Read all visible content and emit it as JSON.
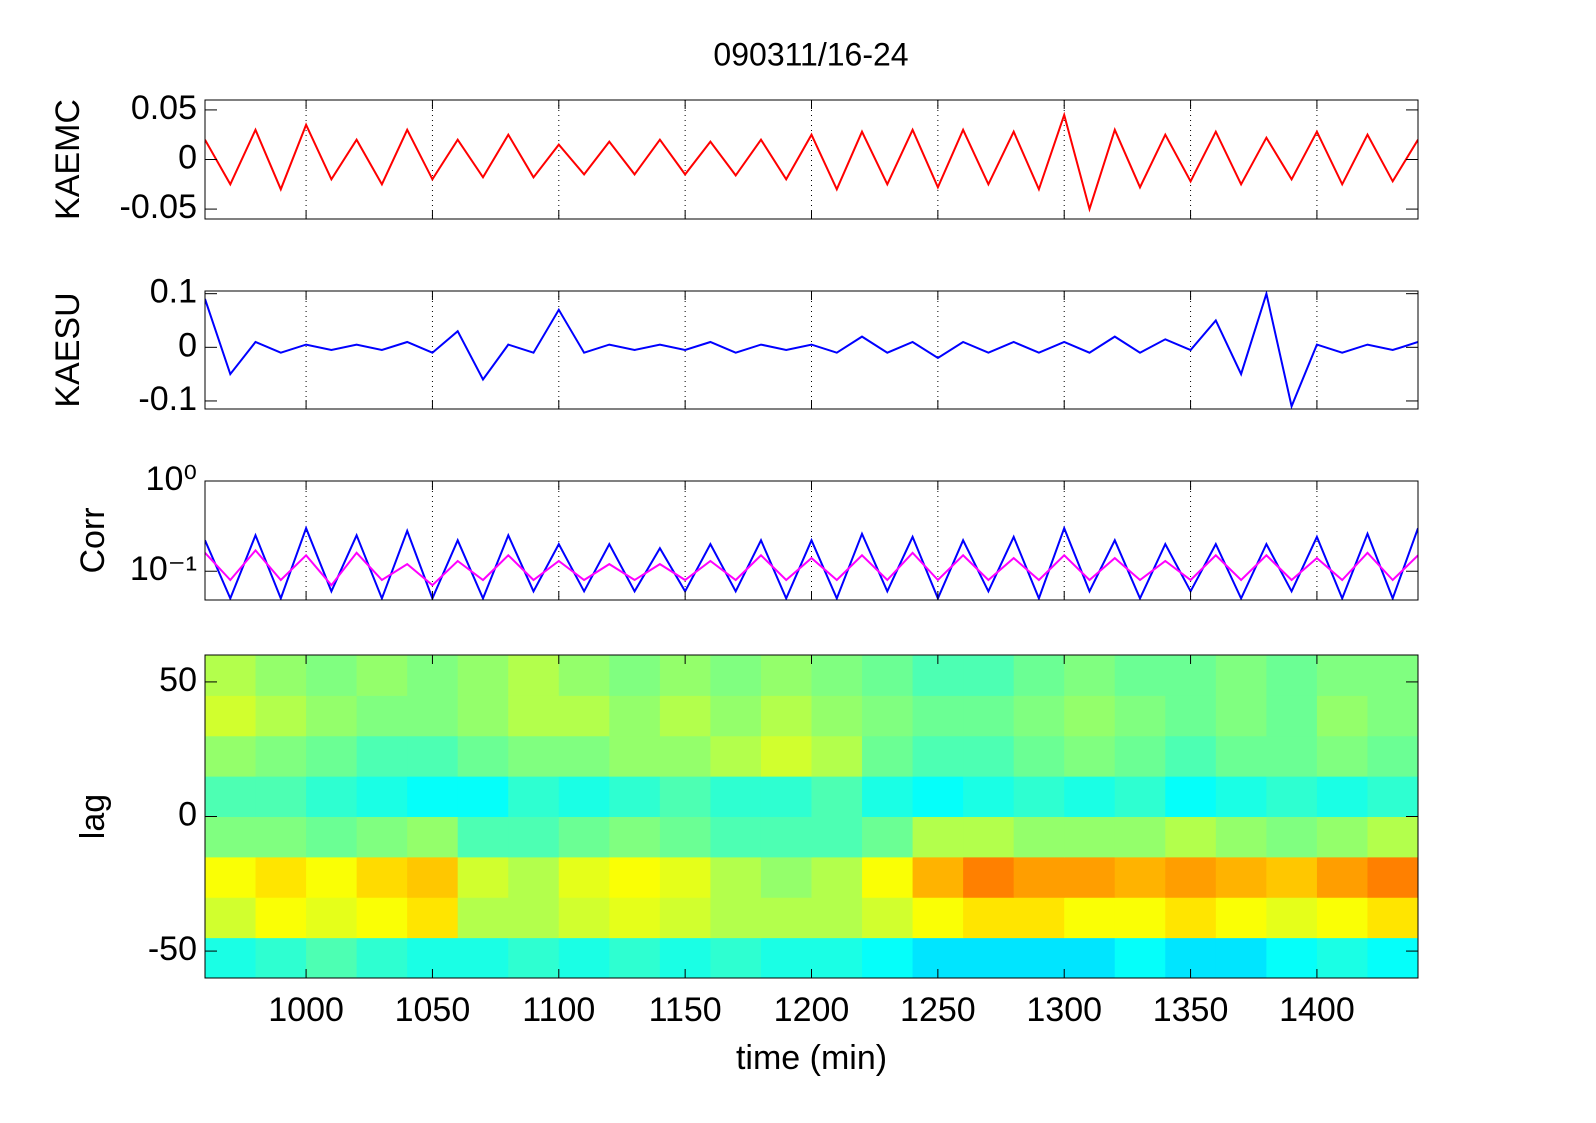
{
  "chart_data": [
    {
      "type": "line",
      "title": "090311/16-24",
      "ylabel": "KAEMC",
      "x": [
        960,
        970,
        980,
        990,
        1000,
        1010,
        1020,
        1030,
        1040,
        1050,
        1060,
        1070,
        1080,
        1090,
        1100,
        1110,
        1120,
        1130,
        1140,
        1150,
        1160,
        1170,
        1180,
        1190,
        1200,
        1210,
        1220,
        1230,
        1240,
        1250,
        1260,
        1270,
        1280,
        1290,
        1300,
        1310,
        1320,
        1330,
        1340,
        1350,
        1360,
        1370,
        1380,
        1390,
        1400,
        1410,
        1420,
        1430,
        1440
      ],
      "series": [
        {
          "color": "#ff0000",
          "values": [
            0.02,
            -0.025,
            0.03,
            -0.03,
            0.035,
            -0.02,
            0.02,
            -0.025,
            0.03,
            -0.02,
            0.02,
            -0.018,
            0.025,
            -0.018,
            0.015,
            -0.015,
            0.018,
            -0.015,
            0.02,
            -0.015,
            0.018,
            -0.016,
            0.02,
            -0.02,
            0.025,
            -0.03,
            0.028,
            -0.025,
            0.03,
            -0.028,
            0.03,
            -0.025,
            0.028,
            -0.03,
            0.045,
            -0.05,
            0.03,
            -0.028,
            0.025,
            -0.022,
            0.028,
            -0.025,
            0.022,
            -0.02,
            0.028,
            -0.025,
            0.025,
            -0.022,
            0.02
          ]
        }
      ],
      "xlim": [
        960,
        1440
      ],
      "xticks": [
        1000,
        1050,
        1100,
        1150,
        1200,
        1250,
        1300,
        1350,
        1400
      ],
      "ylim": [
        -0.06,
        0.06
      ],
      "yticks": [
        -0.05,
        0,
        0.05
      ],
      "grid": "x"
    },
    {
      "type": "line",
      "ylabel": "KAESU",
      "x": [
        960,
        970,
        980,
        990,
        1000,
        1010,
        1020,
        1030,
        1040,
        1050,
        1060,
        1070,
        1080,
        1090,
        1100,
        1110,
        1120,
        1130,
        1140,
        1150,
        1160,
        1170,
        1180,
        1190,
        1200,
        1210,
        1220,
        1230,
        1240,
        1250,
        1260,
        1270,
        1280,
        1290,
        1300,
        1310,
        1320,
        1330,
        1340,
        1350,
        1360,
        1370,
        1380,
        1390,
        1400,
        1410,
        1420,
        1430,
        1440
      ],
      "series": [
        {
          "color": "#0000ff",
          "values": [
            0.09,
            -0.05,
            0.01,
            -0.01,
            0.005,
            -0.005,
            0.005,
            -0.005,
            0.01,
            -0.01,
            0.03,
            -0.06,
            0.005,
            -0.01,
            0.07,
            -0.01,
            0.005,
            -0.005,
            0.005,
            -0.005,
            0.01,
            -0.01,
            0.005,
            -0.005,
            0.005,
            -0.01,
            0.02,
            -0.01,
            0.01,
            -0.02,
            0.01,
            -0.01,
            0.01,
            -0.01,
            0.01,
            -0.01,
            0.02,
            -0.01,
            0.015,
            -0.005,
            0.05,
            -0.05,
            0.1,
            -0.11,
            0.005,
            -0.01,
            0.005,
            -0.005,
            0.01
          ]
        }
      ],
      "xlim": [
        960,
        1440
      ],
      "xticks": [
        1000,
        1050,
        1100,
        1150,
        1200,
        1250,
        1300,
        1350,
        1400
      ],
      "ylim": [
        -0.115,
        0.105
      ],
      "yticks": [
        -0.1,
        0,
        0.1
      ],
      "grid": "x"
    },
    {
      "type": "line",
      "ylabel": "Corr",
      "yscale": "log",
      "x": [
        960,
        970,
        980,
        990,
        1000,
        1010,
        1020,
        1030,
        1040,
        1050,
        1060,
        1070,
        1080,
        1090,
        1100,
        1110,
        1120,
        1130,
        1140,
        1150,
        1160,
        1170,
        1180,
        1190,
        1200,
        1210,
        1220,
        1230,
        1240,
        1250,
        1260,
        1270,
        1280,
        1290,
        1300,
        1310,
        1320,
        1330,
        1340,
        1350,
        1360,
        1370,
        1380,
        1390,
        1400,
        1410,
        1420,
        1430,
        1440
      ],
      "series": [
        {
          "color": "#0000ff",
          "values": [
            0.22,
            0.05,
            0.25,
            0.05,
            0.3,
            0.06,
            0.25,
            0.05,
            0.28,
            0.05,
            0.22,
            0.05,
            0.25,
            0.06,
            0.2,
            0.06,
            0.2,
            0.06,
            0.18,
            0.06,
            0.2,
            0.06,
            0.22,
            0.05,
            0.22,
            0.05,
            0.26,
            0.06,
            0.24,
            0.05,
            0.22,
            0.06,
            0.24,
            0.05,
            0.3,
            0.06,
            0.22,
            0.05,
            0.2,
            0.06,
            0.2,
            0.05,
            0.2,
            0.06,
            0.24,
            0.05,
            0.26,
            0.05,
            0.3
          ]
        },
        {
          "color": "#ff00ff",
          "values": [
            0.16,
            0.08,
            0.17,
            0.08,
            0.15,
            0.07,
            0.16,
            0.08,
            0.12,
            0.07,
            0.13,
            0.08,
            0.15,
            0.08,
            0.13,
            0.08,
            0.12,
            0.08,
            0.12,
            0.08,
            0.13,
            0.08,
            0.15,
            0.08,
            0.14,
            0.08,
            0.15,
            0.08,
            0.16,
            0.08,
            0.15,
            0.08,
            0.14,
            0.08,
            0.15,
            0.08,
            0.14,
            0.08,
            0.13,
            0.08,
            0.15,
            0.08,
            0.15,
            0.08,
            0.14,
            0.08,
            0.16,
            0.08,
            0.15
          ]
        }
      ],
      "xlim": [
        960,
        1440
      ],
      "xticks": [
        1000,
        1050,
        1100,
        1150,
        1200,
        1250,
        1300,
        1350,
        1400
      ],
      "ylim": [
        0.048,
        1
      ],
      "yticks": [
        {
          "value": 0.1,
          "label": "10⁻¹"
        },
        {
          "value": 1,
          "label": "10⁰"
        }
      ],
      "grid": "x"
    },
    {
      "type": "heatmap",
      "ylabel": "lag",
      "xlabel": "time (min)",
      "xbins": [
        960,
        980,
        1000,
        1020,
        1040,
        1060,
        1080,
        1100,
        1120,
        1140,
        1160,
        1180,
        1200,
        1220,
        1240,
        1260,
        1280,
        1300,
        1320,
        1340,
        1360,
        1380,
        1400,
        1420,
        1440
      ],
      "ybins": [
        -60,
        -45,
        -30,
        -15,
        0,
        15,
        30,
        45,
        60
      ],
      "z": [
        [
          0.4,
          0.42,
          0.45,
          0.42,
          0.4,
          0.4,
          0.42,
          0.4,
          0.42,
          0.4,
          0.42,
          0.4,
          0.4,
          0.38,
          0.35,
          0.35,
          0.35,
          0.35,
          0.38,
          0.35,
          0.35,
          0.38,
          0.4,
          0.38
        ],
        [
          0.58,
          0.62,
          0.6,
          0.62,
          0.65,
          0.55,
          0.55,
          0.58,
          0.6,
          0.58,
          0.55,
          0.55,
          0.55,
          0.58,
          0.62,
          0.65,
          0.65,
          0.62,
          0.62,
          0.65,
          0.62,
          0.6,
          0.62,
          0.65
        ],
        [
          0.62,
          0.65,
          0.62,
          0.66,
          0.68,
          0.58,
          0.55,
          0.6,
          0.62,
          0.6,
          0.55,
          0.52,
          0.55,
          0.62,
          0.7,
          0.75,
          0.72,
          0.72,
          0.7,
          0.72,
          0.7,
          0.68,
          0.72,
          0.75
        ],
        [
          0.5,
          0.5,
          0.48,
          0.5,
          0.52,
          0.45,
          0.45,
          0.48,
          0.5,
          0.48,
          0.45,
          0.45,
          0.45,
          0.48,
          0.55,
          0.55,
          0.52,
          0.52,
          0.52,
          0.55,
          0.52,
          0.5,
          0.52,
          0.55
        ],
        [
          0.45,
          0.45,
          0.42,
          0.4,
          0.38,
          0.38,
          0.42,
          0.4,
          0.42,
          0.45,
          0.42,
          0.42,
          0.45,
          0.4,
          0.38,
          0.4,
          0.42,
          0.4,
          0.42,
          0.38,
          0.4,
          0.42,
          0.4,
          0.42
        ],
        [
          0.52,
          0.5,
          0.48,
          0.45,
          0.45,
          0.48,
          0.5,
          0.5,
          0.52,
          0.52,
          0.55,
          0.58,
          0.55,
          0.48,
          0.45,
          0.45,
          0.48,
          0.5,
          0.48,
          0.45,
          0.48,
          0.48,
          0.5,
          0.48
        ],
        [
          0.58,
          0.55,
          0.52,
          0.5,
          0.5,
          0.52,
          0.55,
          0.55,
          0.52,
          0.55,
          0.52,
          0.55,
          0.52,
          0.5,
          0.48,
          0.48,
          0.5,
          0.52,
          0.5,
          0.48,
          0.5,
          0.48,
          0.52,
          0.5
        ],
        [
          0.55,
          0.52,
          0.5,
          0.52,
          0.5,
          0.52,
          0.55,
          0.52,
          0.5,
          0.52,
          0.5,
          0.52,
          0.5,
          0.48,
          0.45,
          0.45,
          0.48,
          0.5,
          0.48,
          0.48,
          0.5,
          0.48,
          0.5,
          0.5
        ]
      ],
      "zlim": [
        0,
        1
      ],
      "xlim": [
        960,
        1440
      ],
      "xticks": [
        1000,
        1050,
        1100,
        1150,
        1200,
        1250,
        1300,
        1350,
        1400
      ],
      "ylim": [
        -60,
        60
      ],
      "yticks": [
        -50,
        0,
        50
      ]
    }
  ]
}
